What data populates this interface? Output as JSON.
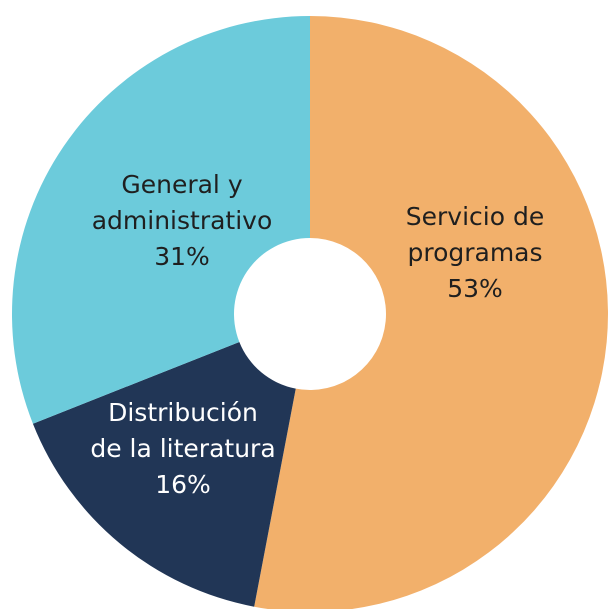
{
  "chart_data": {
    "type": "donut",
    "categories": [
      [
        "Servicio de",
        "programas"
      ],
      [
        "Distribución",
        "de la literatura"
      ],
      [
        "General y",
        "administrativo"
      ]
    ],
    "values": [
      53,
      16,
      31
    ],
    "value_labels": [
      "53%",
      "16%",
      "31%"
    ],
    "colors": [
      "#f2b06b",
      "#213656",
      "#6ccbdb"
    ],
    "label_colors": [
      "#1f1f1f",
      "#ffffff",
      "#1f1f1f"
    ]
  }
}
